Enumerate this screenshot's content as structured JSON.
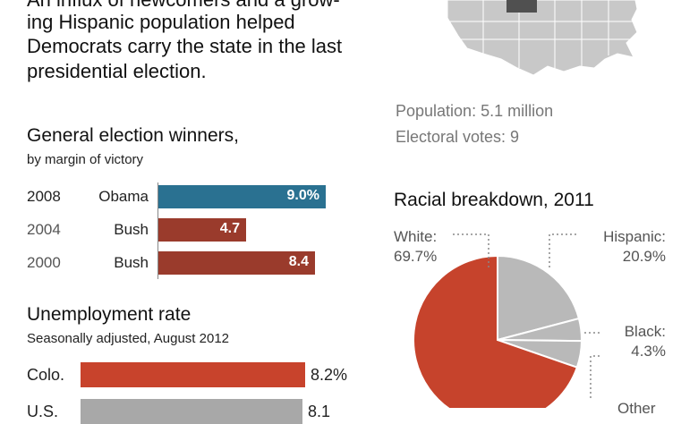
{
  "intro": {
    "line1": "An influx of newcomers and a grow-",
    "line2": "ing Hispanic population helped",
    "line3": "Democrats carry the state in the last",
    "line4": "presidential election."
  },
  "facts": {
    "population": "Population: 5.1 million",
    "electoral": "Electoral votes: 9"
  },
  "colors": {
    "democrat": "#2a7191",
    "republican": "#9a3b2c",
    "colo": "#c8432c",
    "us": "#a8a8a8",
    "pie_white": "#c6432c",
    "pie_other": "#b9b9b9"
  },
  "chart_data": [
    {
      "type": "bar",
      "title": "General election winners,",
      "subtitle": "by margin of victory",
      "categories": [
        "2008",
        "2004",
        "2000"
      ],
      "winners": [
        "Obama",
        "Bush",
        "Bush"
      ],
      "parties": [
        "democrat",
        "republican",
        "republican"
      ],
      "values": [
        9.0,
        4.7,
        8.4
      ],
      "value_labels": [
        "9.0%",
        "4.7",
        "8.4"
      ]
    },
    {
      "type": "bar",
      "title": "Unemployment rate",
      "subtitle": "Seasonally adjusted, August 2012",
      "categories": [
        "Colo.",
        "U.S."
      ],
      "values": [
        8.2,
        8.1
      ],
      "value_labels": [
        "8.2%",
        "8.1"
      ]
    },
    {
      "type": "pie",
      "title": "Racial breakdown, 2011",
      "slices": [
        {
          "name": "White:",
          "value": 69.7,
          "label": "69.7%"
        },
        {
          "name": "Hispanic:",
          "value": 20.9,
          "label": "20.9%"
        },
        {
          "name": "Black:",
          "value": 4.3,
          "label": "4.3%"
        },
        {
          "name": "Other",
          "value": 5.1,
          "label": ""
        }
      ]
    }
  ]
}
